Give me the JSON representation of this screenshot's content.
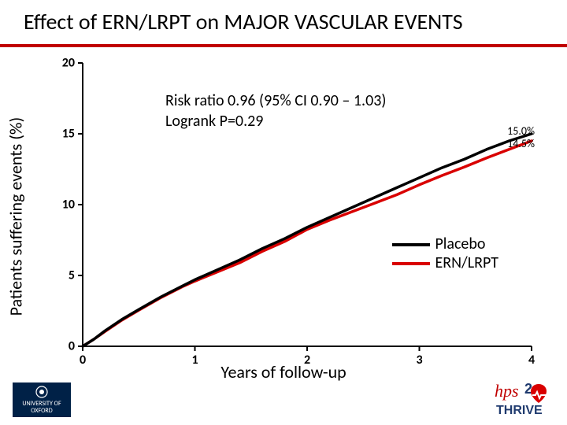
{
  "title": "Effect of ERN/LRPT on MAJOR VASCULAR EVENTS",
  "title_underline_color": "#c00000",
  "ylabel": "Patients  suffering events (%)",
  "xlabel": "Years of follow-up",
  "annotation": {
    "line1": "Risk ratio 0.96 (95% CI 0.90 – 1.03)",
    "line2": "Logrank P=0.29"
  },
  "end_labels": {
    "placebo": "15.0%",
    "ern": "14.5%"
  },
  "legend": {
    "placebo": {
      "label": "Placebo",
      "color": "#000000"
    },
    "ern": {
      "label": "ERN/LRPT",
      "color": "#d90000"
    }
  },
  "chart": {
    "type": "line",
    "xlim": [
      0,
      4
    ],
    "ylim": [
      0,
      20
    ],
    "xticks": [
      0,
      1,
      2,
      3,
      4
    ],
    "yticks": [
      0,
      5,
      10,
      15,
      20
    ],
    "tick_length": 6,
    "axis_color": "#000000",
    "axis_width": 2,
    "line_width": 3.5,
    "series": {
      "placebo": {
        "color": "#000000",
        "points": [
          [
            0.0,
            0.0
          ],
          [
            0.1,
            0.5
          ],
          [
            0.2,
            1.1
          ],
          [
            0.35,
            1.9
          ],
          [
            0.5,
            2.6
          ],
          [
            0.7,
            3.5
          ],
          [
            0.9,
            4.3
          ],
          [
            1.0,
            4.7
          ],
          [
            1.2,
            5.4
          ],
          [
            1.4,
            6.1
          ],
          [
            1.6,
            6.9
          ],
          [
            1.8,
            7.6
          ],
          [
            2.0,
            8.4
          ],
          [
            2.2,
            9.1
          ],
          [
            2.4,
            9.8
          ],
          [
            2.6,
            10.5
          ],
          [
            2.8,
            11.2
          ],
          [
            3.0,
            11.9
          ],
          [
            3.2,
            12.6
          ],
          [
            3.4,
            13.2
          ],
          [
            3.6,
            13.9
          ],
          [
            3.8,
            14.5
          ],
          [
            4.0,
            15.0
          ]
        ]
      },
      "ern": {
        "color": "#d90000",
        "points": [
          [
            0.0,
            0.0
          ],
          [
            0.1,
            0.5
          ],
          [
            0.2,
            1.05
          ],
          [
            0.35,
            1.85
          ],
          [
            0.5,
            2.55
          ],
          [
            0.7,
            3.45
          ],
          [
            0.9,
            4.25
          ],
          [
            1.0,
            4.6
          ],
          [
            1.2,
            5.25
          ],
          [
            1.4,
            5.9
          ],
          [
            1.6,
            6.7
          ],
          [
            1.8,
            7.4
          ],
          [
            2.0,
            8.25
          ],
          [
            2.2,
            8.9
          ],
          [
            2.4,
            9.5
          ],
          [
            2.6,
            10.1
          ],
          [
            2.8,
            10.7
          ],
          [
            3.0,
            11.4
          ],
          [
            3.2,
            12.05
          ],
          [
            3.4,
            12.65
          ],
          [
            3.6,
            13.3
          ],
          [
            3.8,
            13.9
          ],
          [
            4.0,
            14.5
          ]
        ]
      }
    }
  },
  "logos": {
    "oxford": {
      "bg": "#002147",
      "text_top": "UNIVERSITY OF",
      "text_bottom": "OXFORD"
    },
    "hps2thrive": {
      "text": "hps2 THRIVE",
      "color1": "#c00000",
      "color2": "#1f3a6e"
    }
  },
  "fonts": {
    "title_size": 28,
    "axis_label_size": 22,
    "tick_size": 16,
    "annot_size": 20,
    "legend_size": 20,
    "end_label_size": 14
  }
}
